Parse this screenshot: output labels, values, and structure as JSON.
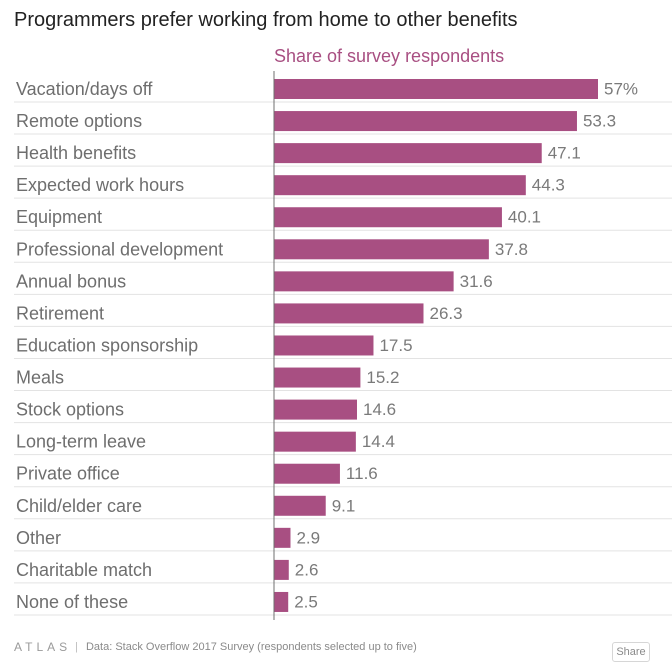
{
  "chart_data": {
    "type": "bar",
    "orientation": "horizontal",
    "title": "Programmers prefer working from home to other benefits",
    "subtitle": "Share of survey respondents",
    "categories": [
      "Vacation/days off",
      "Remote options",
      "Health benefits",
      "Expected work hours",
      "Equipment",
      "Professional development",
      "Annual bonus",
      "Retirement",
      "Education sponsorship",
      "Meals",
      "Stock options",
      "Long-term leave",
      "Private office",
      "Child/elder care",
      "Other",
      "Charitable match",
      "None of these"
    ],
    "values": [
      57,
      53.3,
      47.1,
      44.3,
      40.1,
      37.8,
      31.6,
      26.3,
      17.5,
      15.2,
      14.6,
      14.4,
      11.6,
      9.1,
      2.9,
      2.6,
      2.5
    ],
    "value_labels": [
      "57%",
      "53.3",
      "47.1",
      "44.3",
      "40.1",
      "37.8",
      "31.6",
      "26.3",
      "17.5",
      "15.2",
      "14.6",
      "14.4",
      "11.6",
      "9.1",
      "2.9",
      "2.6",
      "2.5"
    ],
    "xlim": [
      0,
      57
    ],
    "bar_color": "#a84f82",
    "grid": true,
    "gridline_color": "#e3e3e3",
    "axis_color": "#6f6f6f"
  },
  "footer": {
    "logo": "ATLAS",
    "separator": "|",
    "source": "Data:  Stack Overflow 2017 Survey (respondents selected up to five)",
    "share_label": "Share"
  }
}
